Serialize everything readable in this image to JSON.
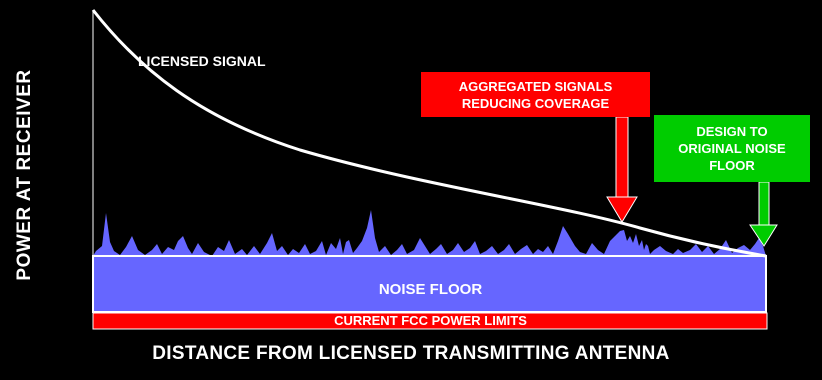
{
  "axes": {
    "y_label": "POWER AT RECEIVER",
    "x_label": "DISTANCE FROM LICENSED TRANSMITTING ANTENNA"
  },
  "labels": {
    "licensed_signal": "LICENSED SIGNAL",
    "noise_floor": "NOISE FLOOR",
    "fcc_limits": "CURRENT FCC POWER LIMITS"
  },
  "callouts": {
    "aggregated": "AGGREGATED SIGNALS\nREDUCING COVERAGE",
    "design": "DESIGN TO\nORIGINAL NOISE\nFLOOR"
  },
  "colors": {
    "background": "#000000",
    "noise_floor": "#6666ff",
    "fcc_limits": "#ff0000",
    "red_callout": "#ff0000",
    "green_callout": "#00cc00",
    "curve": "#ffffff"
  }
}
